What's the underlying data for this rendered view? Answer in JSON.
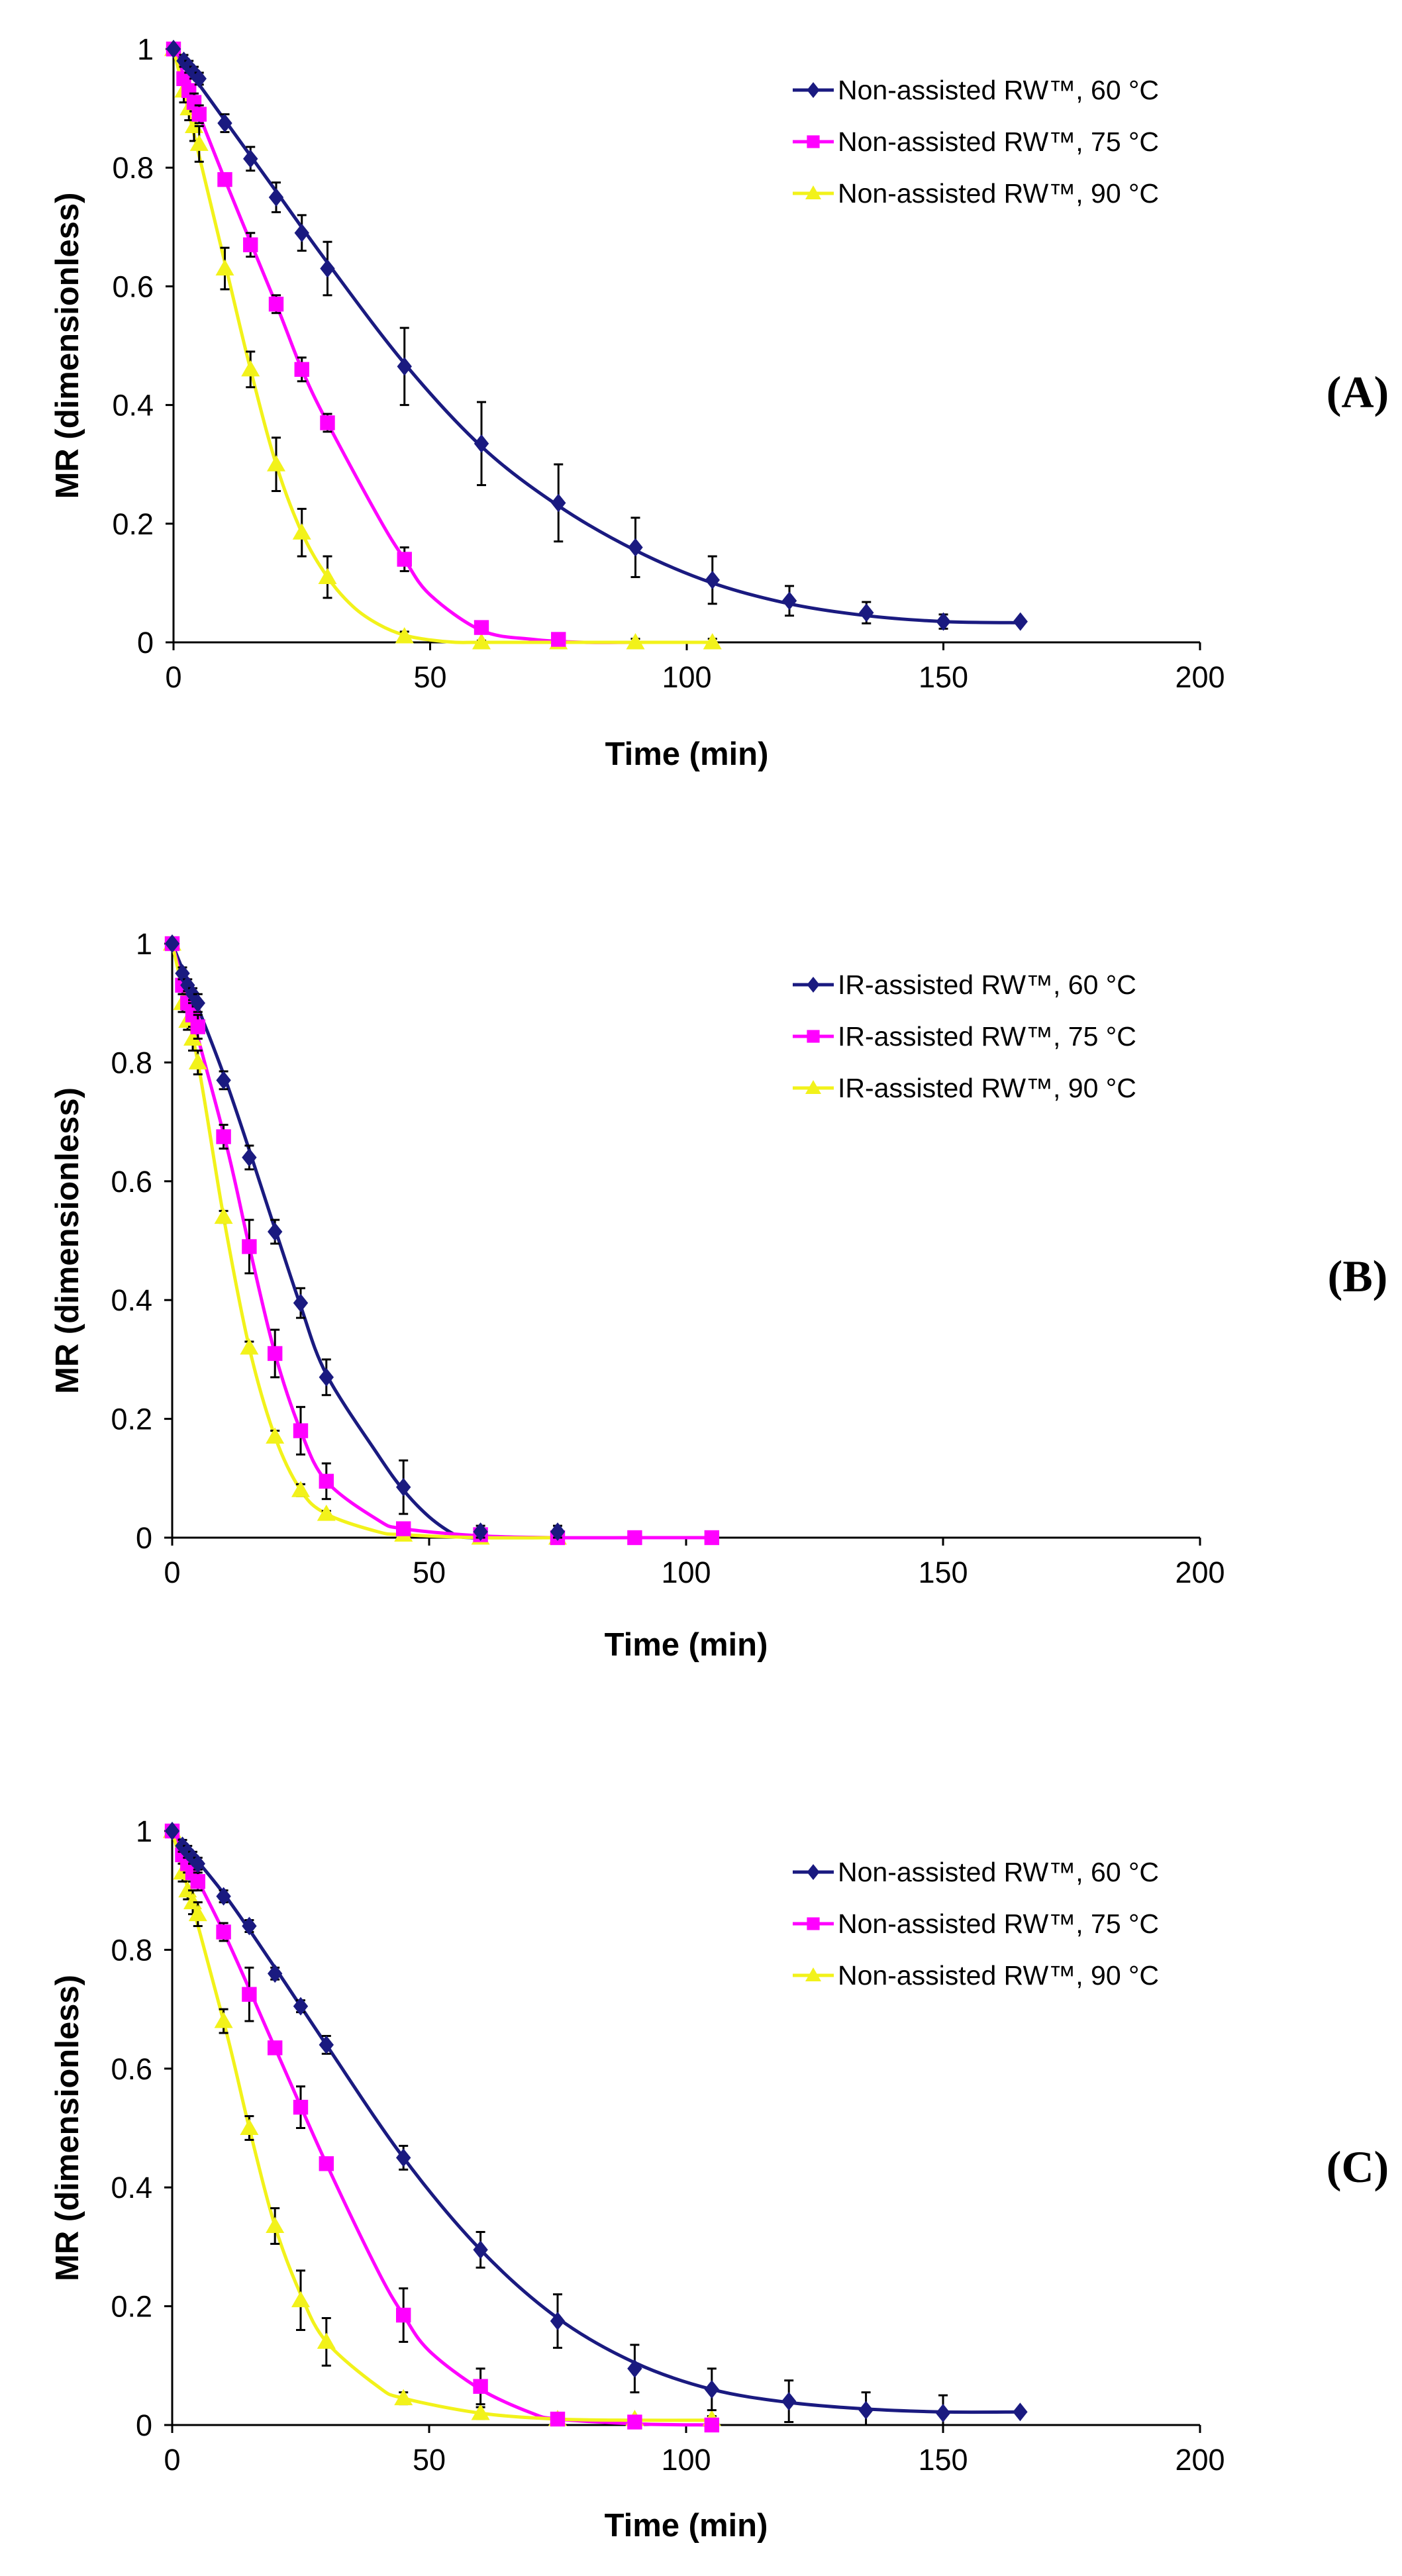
{
  "colors": {
    "s60": "#1a1a80",
    "s75": "#ff00ff",
    "s90": "#f2f21a"
  },
  "chart_data": [
    {
      "type": "scatter",
      "panel_label": "(A)",
      "xlabel": "Time (min)",
      "ylabel": "MR (dimensionless)",
      "xlim": [
        0,
        200
      ],
      "ylim": [
        0,
        1
      ],
      "xticks": [
        0,
        50,
        100,
        150,
        200
      ],
      "yticks": [
        0,
        0.2,
        0.4,
        0.6,
        0.8,
        1
      ],
      "xtick_labels": [
        "0",
        "50",
        "100",
        "150",
        "200"
      ],
      "ytick_labels": [
        "0",
        "0.2",
        "0.4",
        "0.6",
        "0.8",
        "1"
      ],
      "legend_position": "top-right",
      "series": [
        {
          "name": "Non-assisted RW™, 60 °C",
          "color": "#1a1a80",
          "marker": "diamond",
          "x": [
            0,
            2,
            3,
            4,
            5,
            10,
            15,
            20,
            25,
            30,
            45,
            60,
            75,
            90,
            105,
            120,
            135,
            150,
            165
          ],
          "y": [
            1,
            0.98,
            0.97,
            0.96,
            0.95,
            0.875,
            0.815,
            0.75,
            0.69,
            0.63,
            0.465,
            0.335,
            0.235,
            0.16,
            0.105,
            0.07,
            0.05,
            0.035,
            0.035
          ],
          "err": [
            0,
            0.01,
            0.01,
            0.01,
            0.01,
            0.015,
            0.02,
            0.025,
            0.03,
            0.045,
            0.065,
            0.07,
            0.065,
            0.05,
            0.04,
            0.025,
            0.018,
            0.012,
            0
          ]
        },
        {
          "name": "Non-assisted RW™, 75 °C",
          "color": "#ff00ff",
          "marker": "square",
          "x": [
            0,
            2,
            3,
            4,
            5,
            10,
            15,
            20,
            25,
            30,
            45,
            60,
            75
          ],
          "y": [
            1,
            0.95,
            0.93,
            0.91,
            0.89,
            0.78,
            0.67,
            0.57,
            0.46,
            0.37,
            0.14,
            0.025,
            0.005
          ],
          "err": [
            0,
            0.01,
            0.01,
            0.015,
            0.015,
            0.01,
            0.02,
            0.015,
            0.02,
            0.015,
            0.02,
            0.01,
            0.005
          ]
        },
        {
          "name": "Non-assisted RW™, 90 °C",
          "color": "#f2f21a",
          "marker": "triangle",
          "x": [
            0,
            2,
            3,
            4,
            5,
            10,
            15,
            20,
            25,
            30,
            45,
            60,
            75,
            90,
            105
          ],
          "y": [
            1,
            0.93,
            0.9,
            0.87,
            0.84,
            0.63,
            0.46,
            0.3,
            0.185,
            0.11,
            0.01,
            0.0,
            0.0,
            0.0,
            0.0
          ],
          "err": [
            0,
            0.02,
            0.02,
            0.025,
            0.03,
            0.035,
            0.03,
            0.045,
            0.04,
            0.035,
            0.008,
            0.003,
            0.003,
            0.006,
            0.006
          ]
        }
      ],
      "curves": [
        {
          "x": [
            0,
            10,
            20,
            30,
            45,
            60,
            75,
            90,
            105,
            120,
            135,
            150,
            165
          ],
          "y": [
            1,
            0.88,
            0.76,
            0.64,
            0.47,
            0.33,
            0.23,
            0.155,
            0.1,
            0.065,
            0.045,
            0.035,
            0.033
          ]
        },
        {
          "x": [
            0,
            10,
            20,
            25,
            30,
            40,
            45,
            50,
            60,
            70,
            80,
            90,
            100,
            105
          ],
          "y": [
            1,
            0.78,
            0.57,
            0.46,
            0.37,
            0.21,
            0.14,
            0.08,
            0.02,
            0.005,
            0.0,
            0.0,
            0.0,
            0.0
          ]
        },
        {
          "x": [
            0,
            10,
            15,
            20,
            25,
            30,
            35,
            40,
            45,
            50,
            55,
            60,
            75,
            90,
            105
          ],
          "y": [
            1,
            0.64,
            0.46,
            0.3,
            0.185,
            0.11,
            0.06,
            0.03,
            0.012,
            0.004,
            0.0,
            0.0,
            0.0,
            0.0,
            0.0
          ]
        }
      ]
    },
    {
      "type": "scatter",
      "panel_label": "(B)",
      "xlabel": "Time (min)",
      "ylabel": "MR (dimensionless)",
      "xlim": [
        0,
        200
      ],
      "ylim": [
        0,
        1
      ],
      "xticks": [
        0,
        50,
        100,
        150,
        200
      ],
      "yticks": [
        0,
        0.2,
        0.4,
        0.6,
        0.8,
        1
      ],
      "xtick_labels": [
        "0",
        "50",
        "100",
        "150",
        "200"
      ],
      "ytick_labels": [
        "0",
        "0.2",
        "0.4",
        "0.6",
        "0.8",
        "1"
      ],
      "legend_position": "top-right",
      "series": [
        {
          "name": "IR-assisted RW™, 60 °C",
          "color": "#1a1a80",
          "marker": "diamond",
          "x": [
            0,
            2,
            3,
            4,
            5,
            10,
            15,
            20,
            25,
            30,
            45,
            60,
            75
          ],
          "y": [
            1,
            0.95,
            0.93,
            0.915,
            0.9,
            0.77,
            0.64,
            0.515,
            0.395,
            0.27,
            0.085,
            0.01,
            0.01
          ],
          "err": [
            0,
            0.01,
            0.01,
            0.01,
            0.015,
            0.015,
            0.02,
            0.02,
            0.025,
            0.03,
            0.045,
            0.01,
            0.01
          ]
        },
        {
          "name": "IR-assisted RW™, 75 °C",
          "color": "#ff00ff",
          "marker": "square",
          "x": [
            0,
            2,
            3,
            4,
            5,
            10,
            15,
            20,
            25,
            30,
            45,
            60,
            75,
            90,
            105
          ],
          "y": [
            1,
            0.93,
            0.9,
            0.88,
            0.86,
            0.675,
            0.49,
            0.31,
            0.18,
            0.095,
            0.015,
            0.005,
            0.0,
            0.0,
            0.0
          ],
          "err": [
            0,
            0.015,
            0.015,
            0.02,
            0.02,
            0.02,
            0.045,
            0.04,
            0.04,
            0.03,
            0.01,
            0.005,
            0.003,
            0.003,
            0.003
          ]
        },
        {
          "name": "IR-assisted RW™, 90 °C",
          "color": "#f2f21a",
          "marker": "triangle",
          "x": [
            0,
            2,
            3,
            4,
            5,
            10,
            15,
            20,
            25,
            30,
            45,
            60,
            75
          ],
          "y": [
            1,
            0.9,
            0.87,
            0.84,
            0.8,
            0.54,
            0.32,
            0.17,
            0.08,
            0.04,
            0.005,
            0.0,
            0.0
          ],
          "err": [
            0,
            0.015,
            0.015,
            0.02,
            0.02,
            0.01,
            0.01,
            0.01,
            0.01,
            0.005,
            0.003,
            0.002,
            0.002
          ]
        }
      ],
      "curves": [
        {
          "x": [
            0,
            10,
            20,
            25,
            30,
            40,
            45,
            50,
            55,
            58,
            60,
            65,
            75
          ],
          "y": [
            1,
            0.78,
            0.52,
            0.39,
            0.275,
            0.14,
            0.08,
            0.035,
            0.005,
            0.0,
            0.0,
            0.0,
            0.0
          ]
        },
        {
          "x": [
            0,
            10,
            15,
            20,
            25,
            30,
            40,
            45,
            60,
            75,
            90,
            105
          ],
          "y": [
            1,
            0.68,
            0.49,
            0.31,
            0.18,
            0.095,
            0.03,
            0.015,
            0.003,
            0.0,
            0.0,
            0.0
          ]
        },
        {
          "x": [
            0,
            5,
            10,
            15,
            20,
            25,
            30,
            40,
            45,
            60,
            75
          ],
          "y": [
            1,
            0.8,
            0.54,
            0.32,
            0.17,
            0.08,
            0.04,
            0.01,
            0.005,
            0.0,
            0.0
          ]
        }
      ]
    },
    {
      "type": "scatter",
      "panel_label": "(C)",
      "xlabel": "Time (min)",
      "ylabel": "MR (dimensionless)",
      "xlim": [
        0,
        200
      ],
      "ylim": [
        0,
        1
      ],
      "xticks": [
        0,
        50,
        100,
        150,
        200
      ],
      "yticks": [
        0,
        0.2,
        0.4,
        0.6,
        0.8,
        1
      ],
      "xtick_labels": [
        "0",
        "50",
        "100",
        "150",
        "200"
      ],
      "ytick_labels": [
        "0",
        "0.2",
        "0.4",
        "0.6",
        "0.8",
        "1"
      ],
      "legend_position": "top-right",
      "series": [
        {
          "name": "Non-assisted RW™, 60 °C",
          "color": "#1a1a80",
          "marker": "diamond",
          "x": [
            0,
            2,
            3,
            4,
            5,
            10,
            15,
            20,
            25,
            30,
            45,
            60,
            75,
            90,
            105,
            120,
            135,
            150,
            165
          ],
          "y": [
            1,
            0.975,
            0.965,
            0.955,
            0.945,
            0.89,
            0.84,
            0.76,
            0.705,
            0.64,
            0.45,
            0.295,
            0.175,
            0.095,
            0.06,
            0.04,
            0.025,
            0.02,
            0.022
          ],
          "err": [
            0,
            0.01,
            0.01,
            0.01,
            0.01,
            0.01,
            0.01,
            0.01,
            0.01,
            0.015,
            0.02,
            0.03,
            0.045,
            0.04,
            0.035,
            0.035,
            0.03,
            0.03,
            0
          ]
        },
        {
          "name": "Non-assisted RW™, 75 °C",
          "color": "#ff00ff",
          "marker": "square",
          "x": [
            0,
            2,
            3,
            4,
            5,
            10,
            15,
            20,
            25,
            30,
            45,
            60,
            75,
            90,
            105
          ],
          "y": [
            1,
            0.96,
            0.945,
            0.93,
            0.915,
            0.83,
            0.725,
            0.635,
            0.535,
            0.44,
            0.185,
            0.065,
            0.01,
            0.005,
            0.0
          ],
          "err": [
            0,
            0.01,
            0.015,
            0.015,
            0.015,
            0.015,
            0.045,
            0.01,
            0.035,
            0.01,
            0.045,
            0.03,
            0.01,
            0.01,
            0.003
          ]
        },
        {
          "name": "Non-assisted RW™, 90 °C",
          "color": "#f2f21a",
          "marker": "triangle",
          "x": [
            0,
            2,
            3,
            4,
            5,
            10,
            15,
            20,
            25,
            30,
            45,
            60,
            75,
            90,
            105
          ],
          "y": [
            1,
            0.93,
            0.9,
            0.88,
            0.86,
            0.68,
            0.5,
            0.335,
            0.21,
            0.14,
            0.045,
            0.02,
            0.01,
            0.01,
            0.01
          ],
          "err": [
            0,
            0.015,
            0.015,
            0.02,
            0.02,
            0.02,
            0.02,
            0.03,
            0.05,
            0.04,
            0.01,
            0.01,
            0.005,
            0.005,
            0.005
          ]
        }
      ],
      "curves": [
        {
          "x": [
            0,
            10,
            20,
            30,
            45,
            60,
            75,
            90,
            105,
            120,
            135,
            150,
            165
          ],
          "y": [
            1,
            0.895,
            0.77,
            0.64,
            0.45,
            0.295,
            0.18,
            0.105,
            0.06,
            0.038,
            0.027,
            0.022,
            0.022
          ]
        },
        {
          "x": [
            0,
            10,
            20,
            30,
            40,
            45,
            50,
            60,
            70,
            75,
            90,
            105
          ],
          "y": [
            1,
            0.83,
            0.635,
            0.44,
            0.26,
            0.185,
            0.125,
            0.06,
            0.02,
            0.01,
            0.002,
            0.0
          ]
        },
        {
          "x": [
            0,
            10,
            15,
            20,
            25,
            30,
            40,
            45,
            60,
            75,
            90,
            105
          ],
          "y": [
            1,
            0.68,
            0.5,
            0.335,
            0.22,
            0.14,
            0.065,
            0.045,
            0.02,
            0.01,
            0.008,
            0.008
          ]
        }
      ]
    }
  ]
}
